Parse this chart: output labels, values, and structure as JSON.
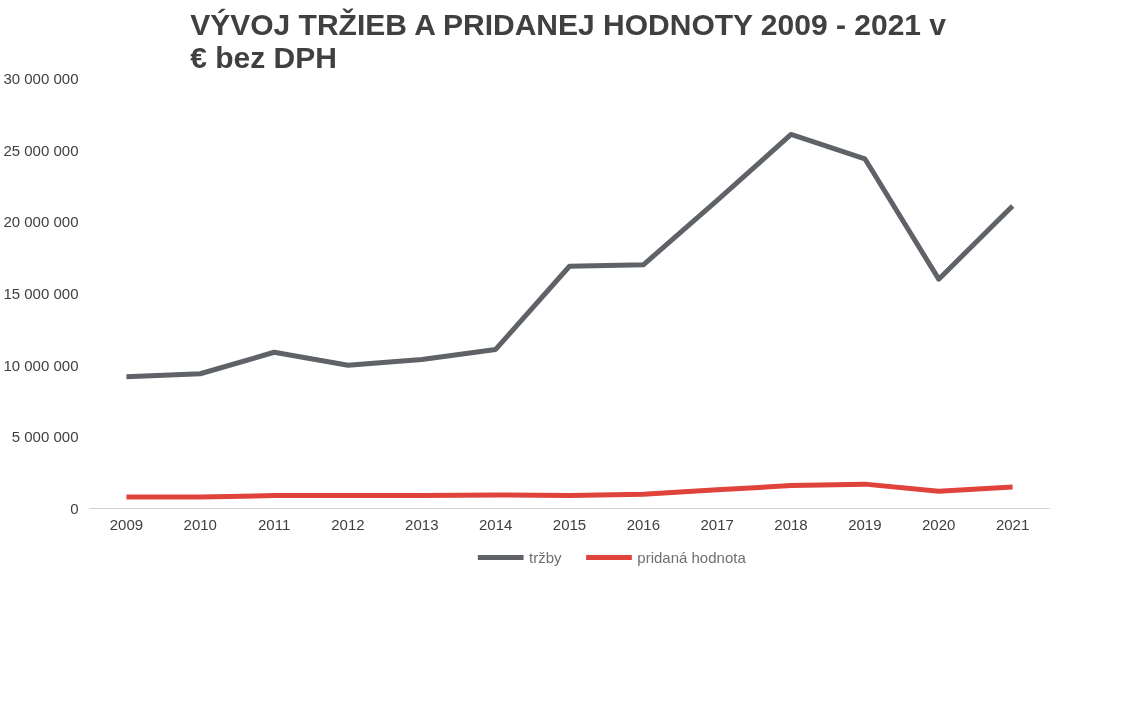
{
  "chart_data": {
    "type": "line",
    "title": "VÝVOJ TRŽIEB A PRIDANEJ HODNOTY 2009 - 2021 v\n€ bez DPH",
    "categories": [
      "2009",
      "2010",
      "2011",
      "2012",
      "2013",
      "2014",
      "2015",
      "2016",
      "2017",
      "2018",
      "2019",
      "2020",
      "2021"
    ],
    "series": [
      {
        "name": "tržby",
        "color": "#5f6266",
        "values": [
          9200000,
          9400000,
          10900000,
          10000000,
          10400000,
          11100000,
          16900000,
          17000000,
          21500000,
          26100000,
          24400000,
          16000000,
          21100000
        ]
      },
      {
        "name": "pridaná hodnota",
        "color": "#e0423c",
        "values": [
          800000,
          800000,
          900000,
          900000,
          900000,
          950000,
          900000,
          1000000,
          1300000,
          1600000,
          1700000,
          1200000,
          1500000
        ]
      }
    ],
    "ylim": [
      0,
      30000000
    ],
    "yticks": [
      {
        "value": 0,
        "label": "0"
      },
      {
        "value": 5000000,
        "label": "5 000 000"
      },
      {
        "value": 10000000,
        "label": "10 000 000"
      },
      {
        "value": 15000000,
        "label": "15 000 000"
      },
      {
        "value": 20000000,
        "label": "20 000 000"
      },
      {
        "value": 25000000,
        "label": "25 000 000"
      },
      {
        "value": 30000000,
        "label": "30 000 000"
      }
    ],
    "grid": false,
    "legend": "bottom",
    "marker": "none",
    "line_style": "solid"
  }
}
